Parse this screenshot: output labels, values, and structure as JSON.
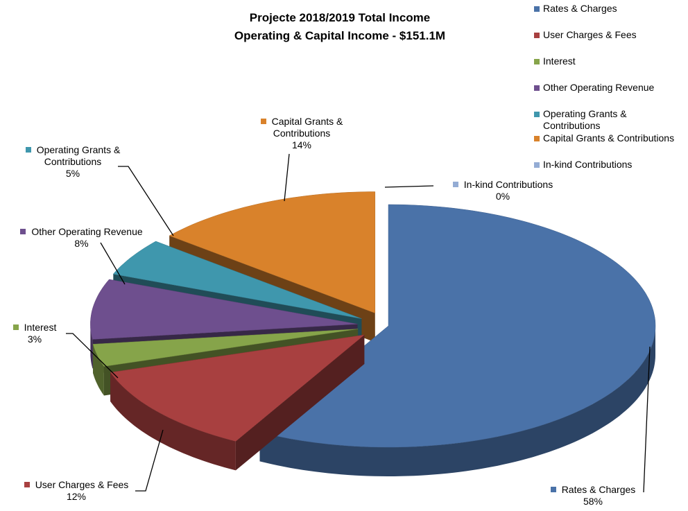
{
  "chart_data": {
    "type": "pie",
    "title": "Projecte 2018/2019 Total Income",
    "subtitle": "Operating & Capital Income - $151.1M",
    "categories": [
      "Rates & Charges",
      "User Charges & Fees",
      "Interest",
      "Other Operating Revenue",
      "Operating Grants & Contributions",
      "Capital Grants & Contributions",
      "In-kind Contributions"
    ],
    "values": [
      58,
      12,
      3,
      8,
      5,
      14,
      0
    ],
    "value_labels": [
      "58%",
      "12%",
      "3%",
      "8%",
      "5%",
      "14%",
      "0%"
    ],
    "colors": [
      "#4a72a8",
      "#a84040",
      "#86a44a",
      "#6e4f8e",
      "#3f97ad",
      "#d9822b",
      "#94acd4"
    ],
    "legend": "top-right"
  }
}
